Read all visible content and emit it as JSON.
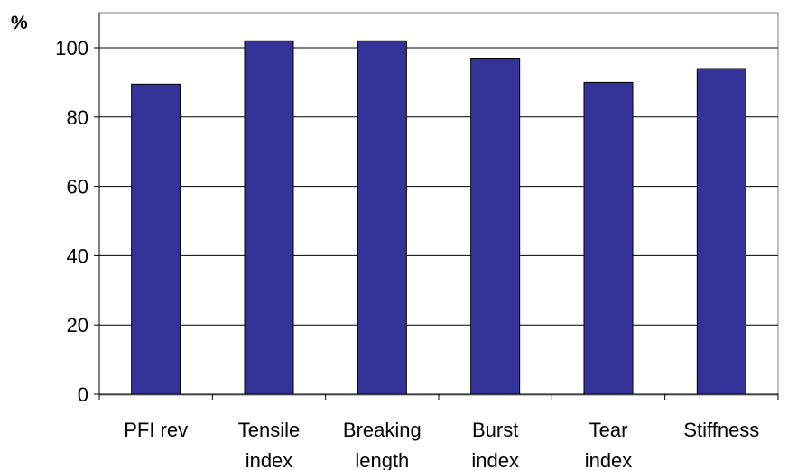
{
  "chart_data": {
    "type": "bar",
    "title": "",
    "xlabel": "",
    "ylabel": "%",
    "categories": [
      [
        "PFI rev"
      ],
      [
        "Tensile",
        "index"
      ],
      [
        "Breaking",
        "length"
      ],
      [
        "Burst",
        "index"
      ],
      [
        "Tear",
        "index"
      ],
      [
        "Stiffness"
      ]
    ],
    "values": [
      89.5,
      102,
      102,
      97,
      90,
      94
    ],
    "ylim": [
      0,
      100
    ],
    "yticks": [
      0,
      20,
      40,
      60,
      80,
      100
    ],
    "grid": true,
    "legend": "none",
    "bar_color": "#333399",
    "grid_color": "#000000"
  }
}
